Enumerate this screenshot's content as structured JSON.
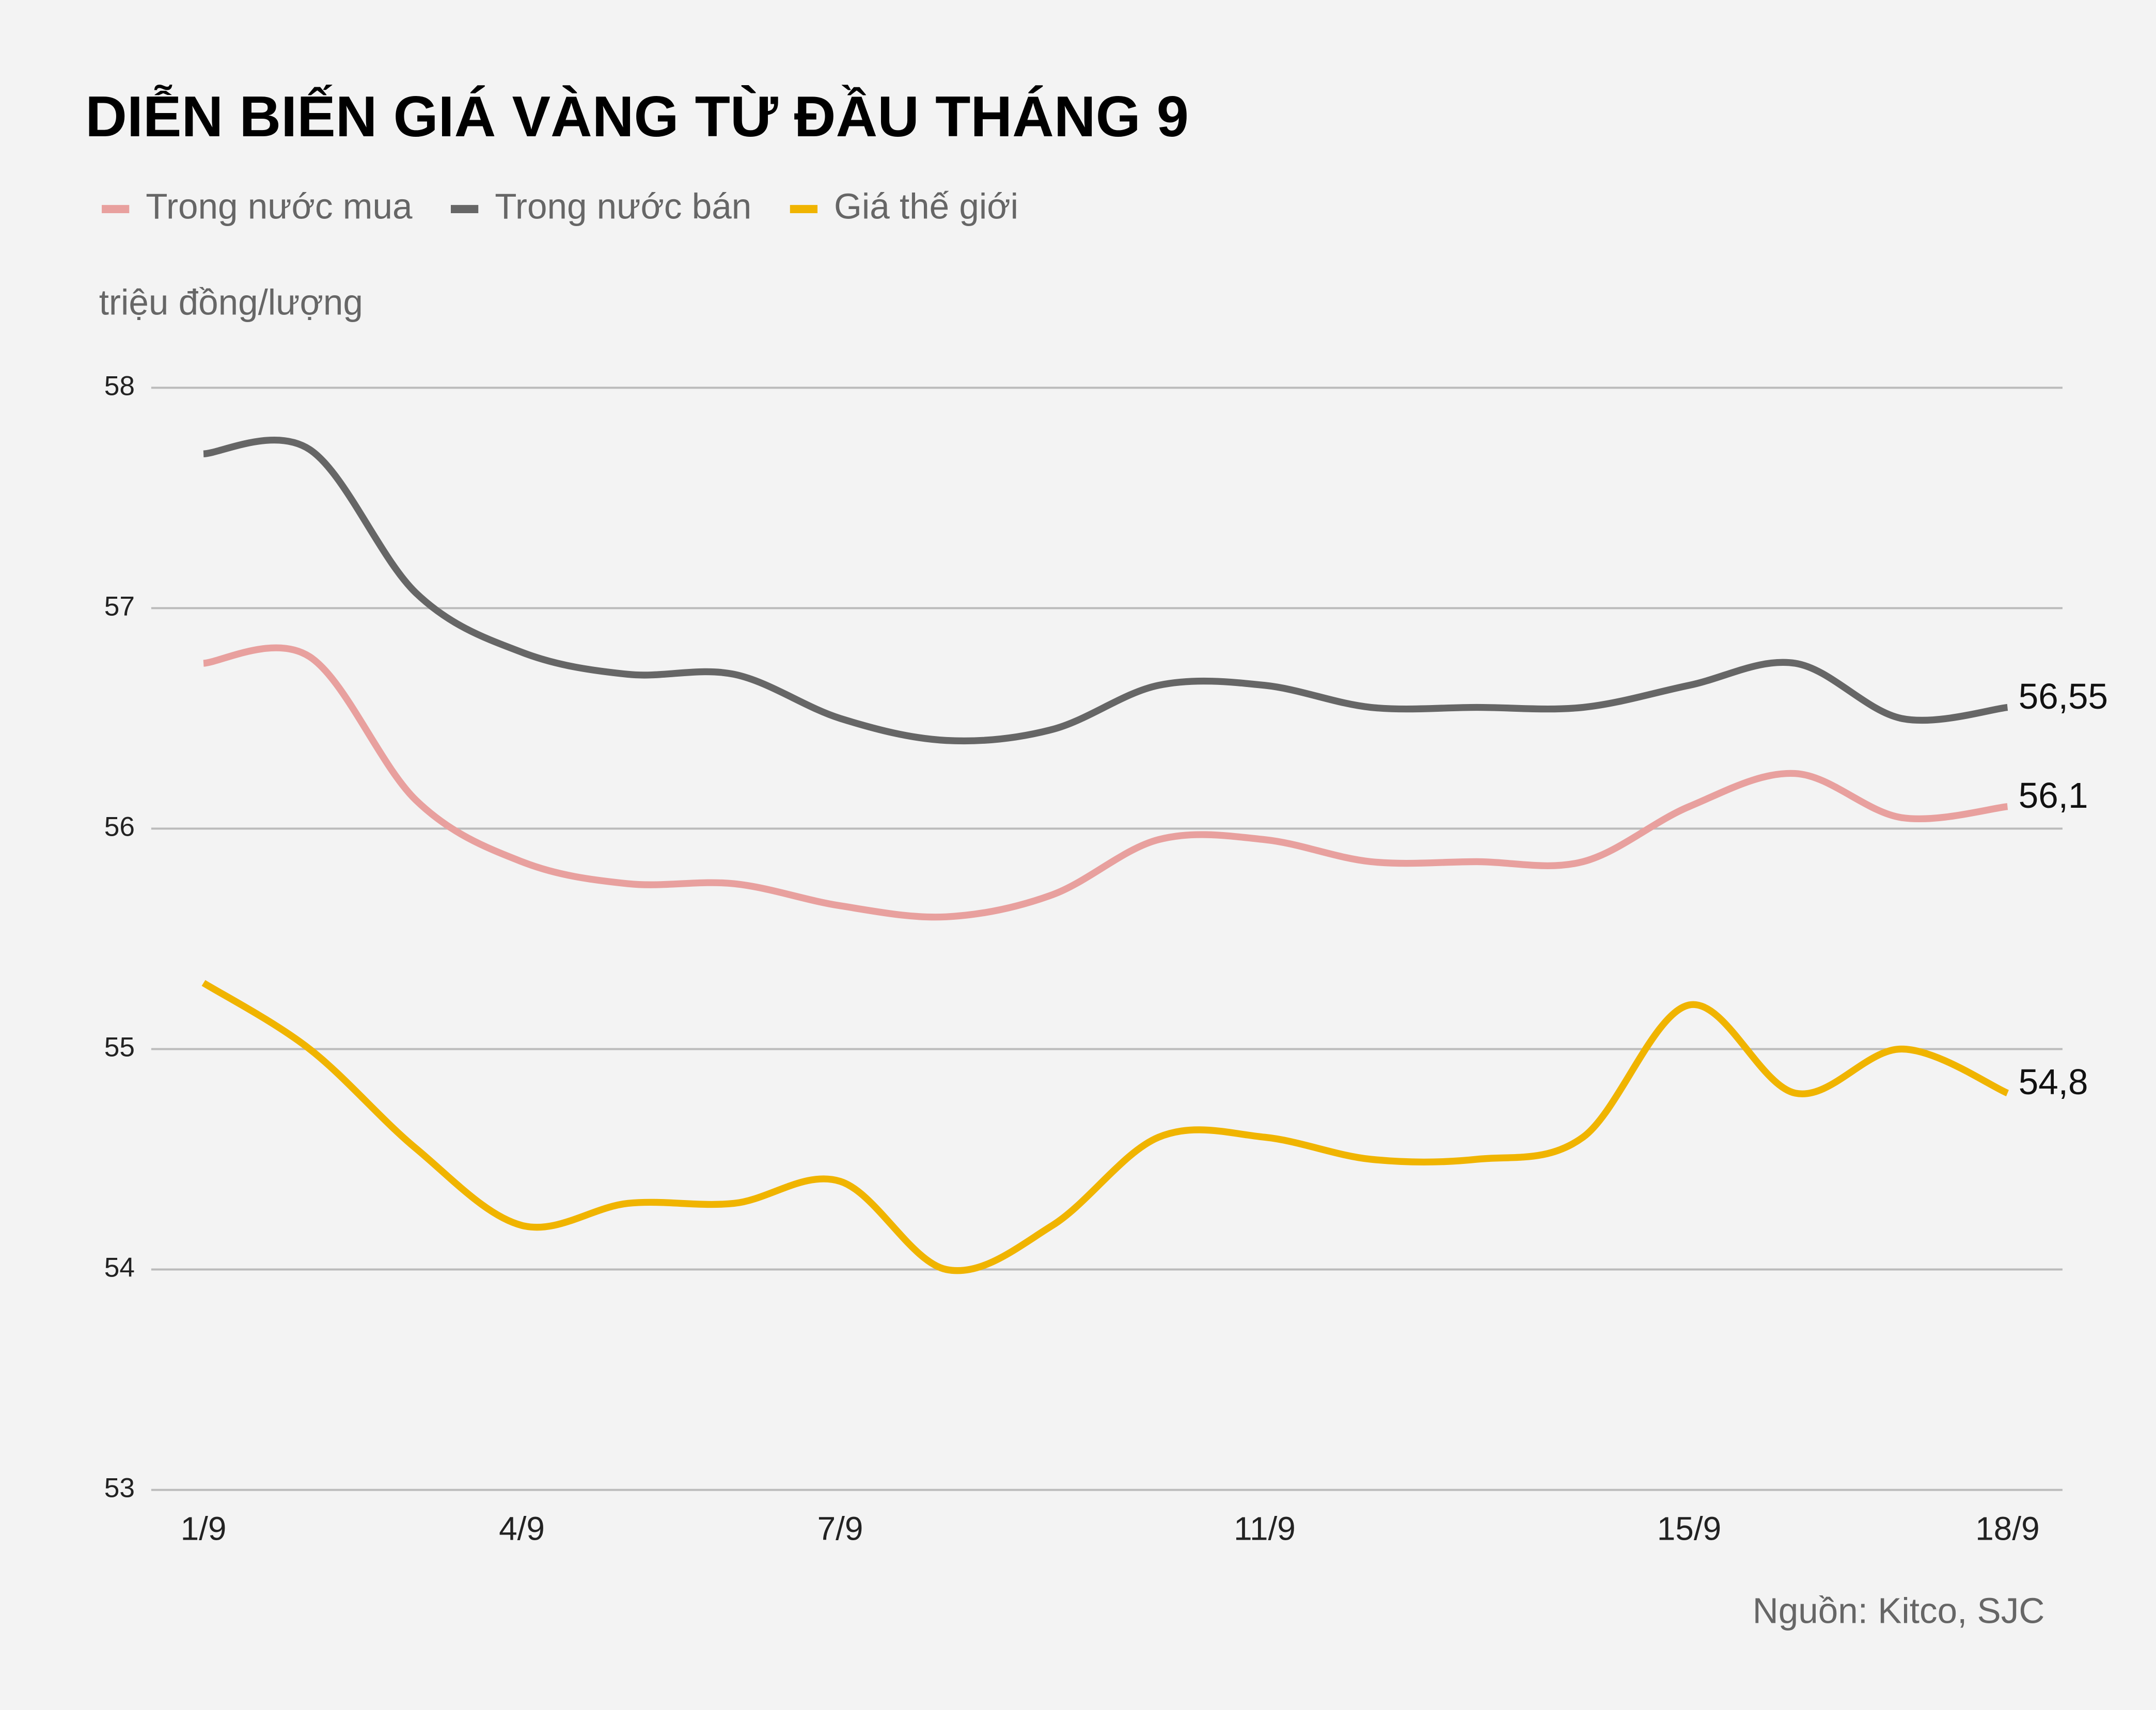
{
  "chart_data": {
    "type": "line",
    "title": "DIỄN BIẾN GIÁ VÀNG TỪ ĐẦU THÁNG 9",
    "y_label": "triệu đồng/lượng",
    "source": "Nguồn: Kitco, SJC",
    "categories": [
      "1/9",
      null,
      null,
      "4/9",
      null,
      null,
      "7/9",
      null,
      null,
      null,
      "11/9",
      null,
      null,
      null,
      "15/9",
      null,
      null,
      "18/9"
    ],
    "series": [
      {
        "name": "Trong nước mua",
        "color": "#e8a09e",
        "values": [
          56.75,
          56.78,
          56.13,
          55.85,
          55.75,
          55.75,
          55.65,
          55.6,
          55.7,
          55.95,
          55.95,
          55.85,
          55.85,
          55.85,
          56.1,
          56.25,
          56.05,
          56.1
        ],
        "value_labels": [
          null,
          null,
          null,
          null,
          null,
          null,
          null,
          null,
          null,
          null,
          null,
          null,
          null,
          null,
          null,
          null,
          null,
          "56,1"
        ]
      },
      {
        "name": "Trong nước bán",
        "color": "#666666",
        "values": [
          57.7,
          57.72,
          57.07,
          56.8,
          56.7,
          56.7,
          56.5,
          56.4,
          56.45,
          56.65,
          56.65,
          56.55,
          56.55,
          56.55,
          56.65,
          56.75,
          56.5,
          56.55
        ],
        "value_labels": [
          null,
          null,
          null,
          null,
          null,
          null,
          null,
          null,
          null,
          null,
          null,
          null,
          null,
          null,
          null,
          null,
          null,
          "56,55"
        ]
      },
      {
        "name": "Giá thế giới",
        "color": "#f0b400",
        "values": [
          55.3,
          55.0,
          54.55,
          54.2,
          54.3,
          54.3,
          54.4,
          54.0,
          54.2,
          54.6,
          54.6,
          54.5,
          54.5,
          54.6,
          55.2,
          54.8,
          55.0,
          54.8
        ],
        "value_labels": [
          null,
          null,
          null,
          null,
          null,
          null,
          null,
          null,
          null,
          null,
          null,
          null,
          null,
          null,
          null,
          null,
          null,
          "54,8"
        ]
      }
    ],
    "ylim": [
      53,
      58
    ],
    "yticks": [
      53,
      54,
      55,
      56,
      57,
      58
    ],
    "grid": true
  }
}
